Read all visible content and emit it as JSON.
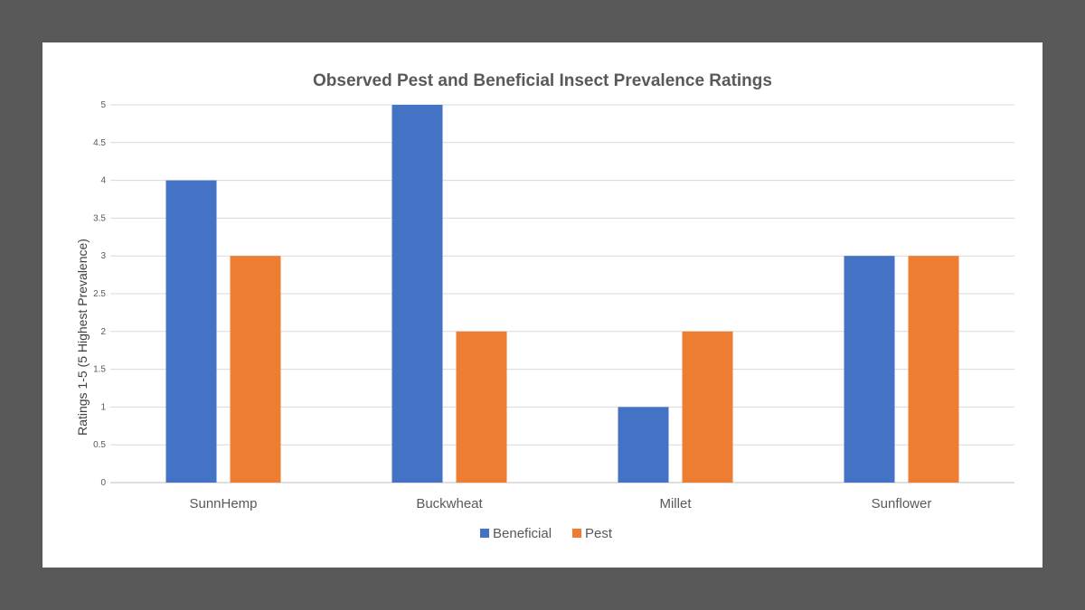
{
  "chart_data": {
    "type": "bar",
    "title": "Observed Pest and Beneficial Insect Prevalence Ratings",
    "xlabel": "",
    "ylabel": "Ratings 1-5 (5 Highest Prevalence)",
    "ylim": [
      0,
      5
    ],
    "yticks": [
      "0",
      "0.5",
      "1",
      "1.5",
      "2",
      "2.5",
      "3",
      "3.5",
      "4",
      "4.5",
      "5"
    ],
    "grid": true,
    "legend_position": "bottom",
    "categories": [
      "SunnHemp",
      "Buckwheat",
      "Millet",
      "Sunflower"
    ],
    "series": [
      {
        "name": "Beneficial",
        "color": "#4472C4",
        "values": [
          4,
          5,
          1,
          3
        ]
      },
      {
        "name": "Pest",
        "color": "#ED7D31",
        "values": [
          3,
          2,
          2,
          3
        ]
      }
    ]
  }
}
